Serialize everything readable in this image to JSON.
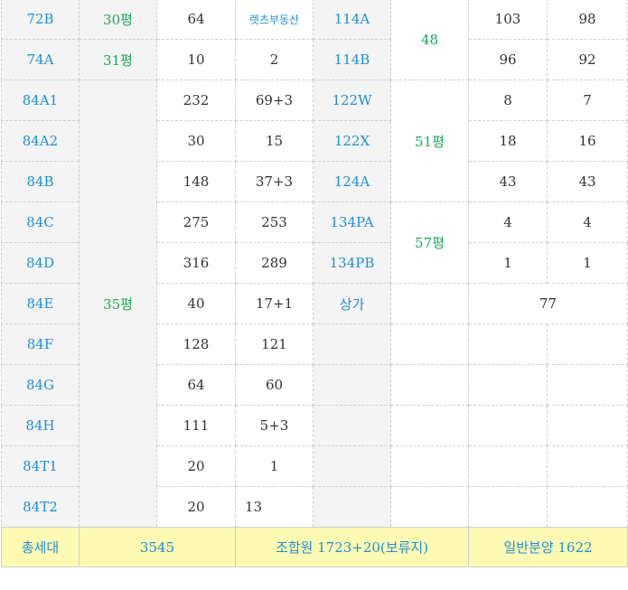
{
  "rows": [
    {
      "a_type": "72B",
      "a_pyeong": "30평",
      "a_total": "64",
      "a_general": "렛츠부동산",
      "b_type": "114A",
      "b_pyeong": "48",
      "b_total": "103",
      "b_general": "98"
    },
    {
      "a_type": "74A",
      "a_pyeong": "31평",
      "a_total": "10",
      "a_general": "2",
      "b_type": "114B",
      "b_total": "96",
      "b_general": "92"
    },
    {
      "a_type": "84A1",
      "a_total": "232",
      "a_general": "69+3",
      "b_type": "122W",
      "b_pyeong": "51평",
      "b_total": "8",
      "b_general": "7"
    },
    {
      "a_type": "84A2",
      "a_total": "30",
      "a_general": "15",
      "b_type": "122X",
      "b_total": "18",
      "b_general": "16"
    },
    {
      "a_type": "84B",
      "a_pyeong": "35평",
      "a_total": "148",
      "a_general": "37+3",
      "b_type": "124A",
      "b_total": "43",
      "b_general": "43"
    },
    {
      "a_type": "84C",
      "a_total": "275",
      "a_general": "253",
      "b_type": "134PA",
      "b_pyeong": "57평",
      "b_total": "4",
      "b_general": "4"
    },
    {
      "a_type": "84D",
      "a_total": "316",
      "a_general": "289",
      "b_type": "134PB",
      "b_total": "1",
      "b_general": "1"
    },
    {
      "a_type": "84E",
      "a_total": "40",
      "a_general": "17+1",
      "b_type": "상가",
      "b_merged": "77"
    },
    {
      "a_type": "84F",
      "a_total": "128",
      "a_general": "121"
    },
    {
      "a_type": "84G",
      "a_total": "64",
      "a_general": "60"
    },
    {
      "a_type": "84H",
      "a_total": "111",
      "a_general": "5+3"
    },
    {
      "a_type": "84T1",
      "a_total": "20",
      "a_general": "1"
    },
    {
      "a_type": "84T2",
      "a_total": "20",
      "a_general": "13"
    }
  ],
  "totals": {
    "label": "총세대",
    "total": "3545",
    "union": "조합원 1723+20(보류지)",
    "general": "일반분양 1622"
  },
  "colors": {
    "blue": "#1f8fd4",
    "green": "#1aa85a",
    "total_bg": "#fdfab4",
    "cell_grey": "#f4f4f4"
  }
}
